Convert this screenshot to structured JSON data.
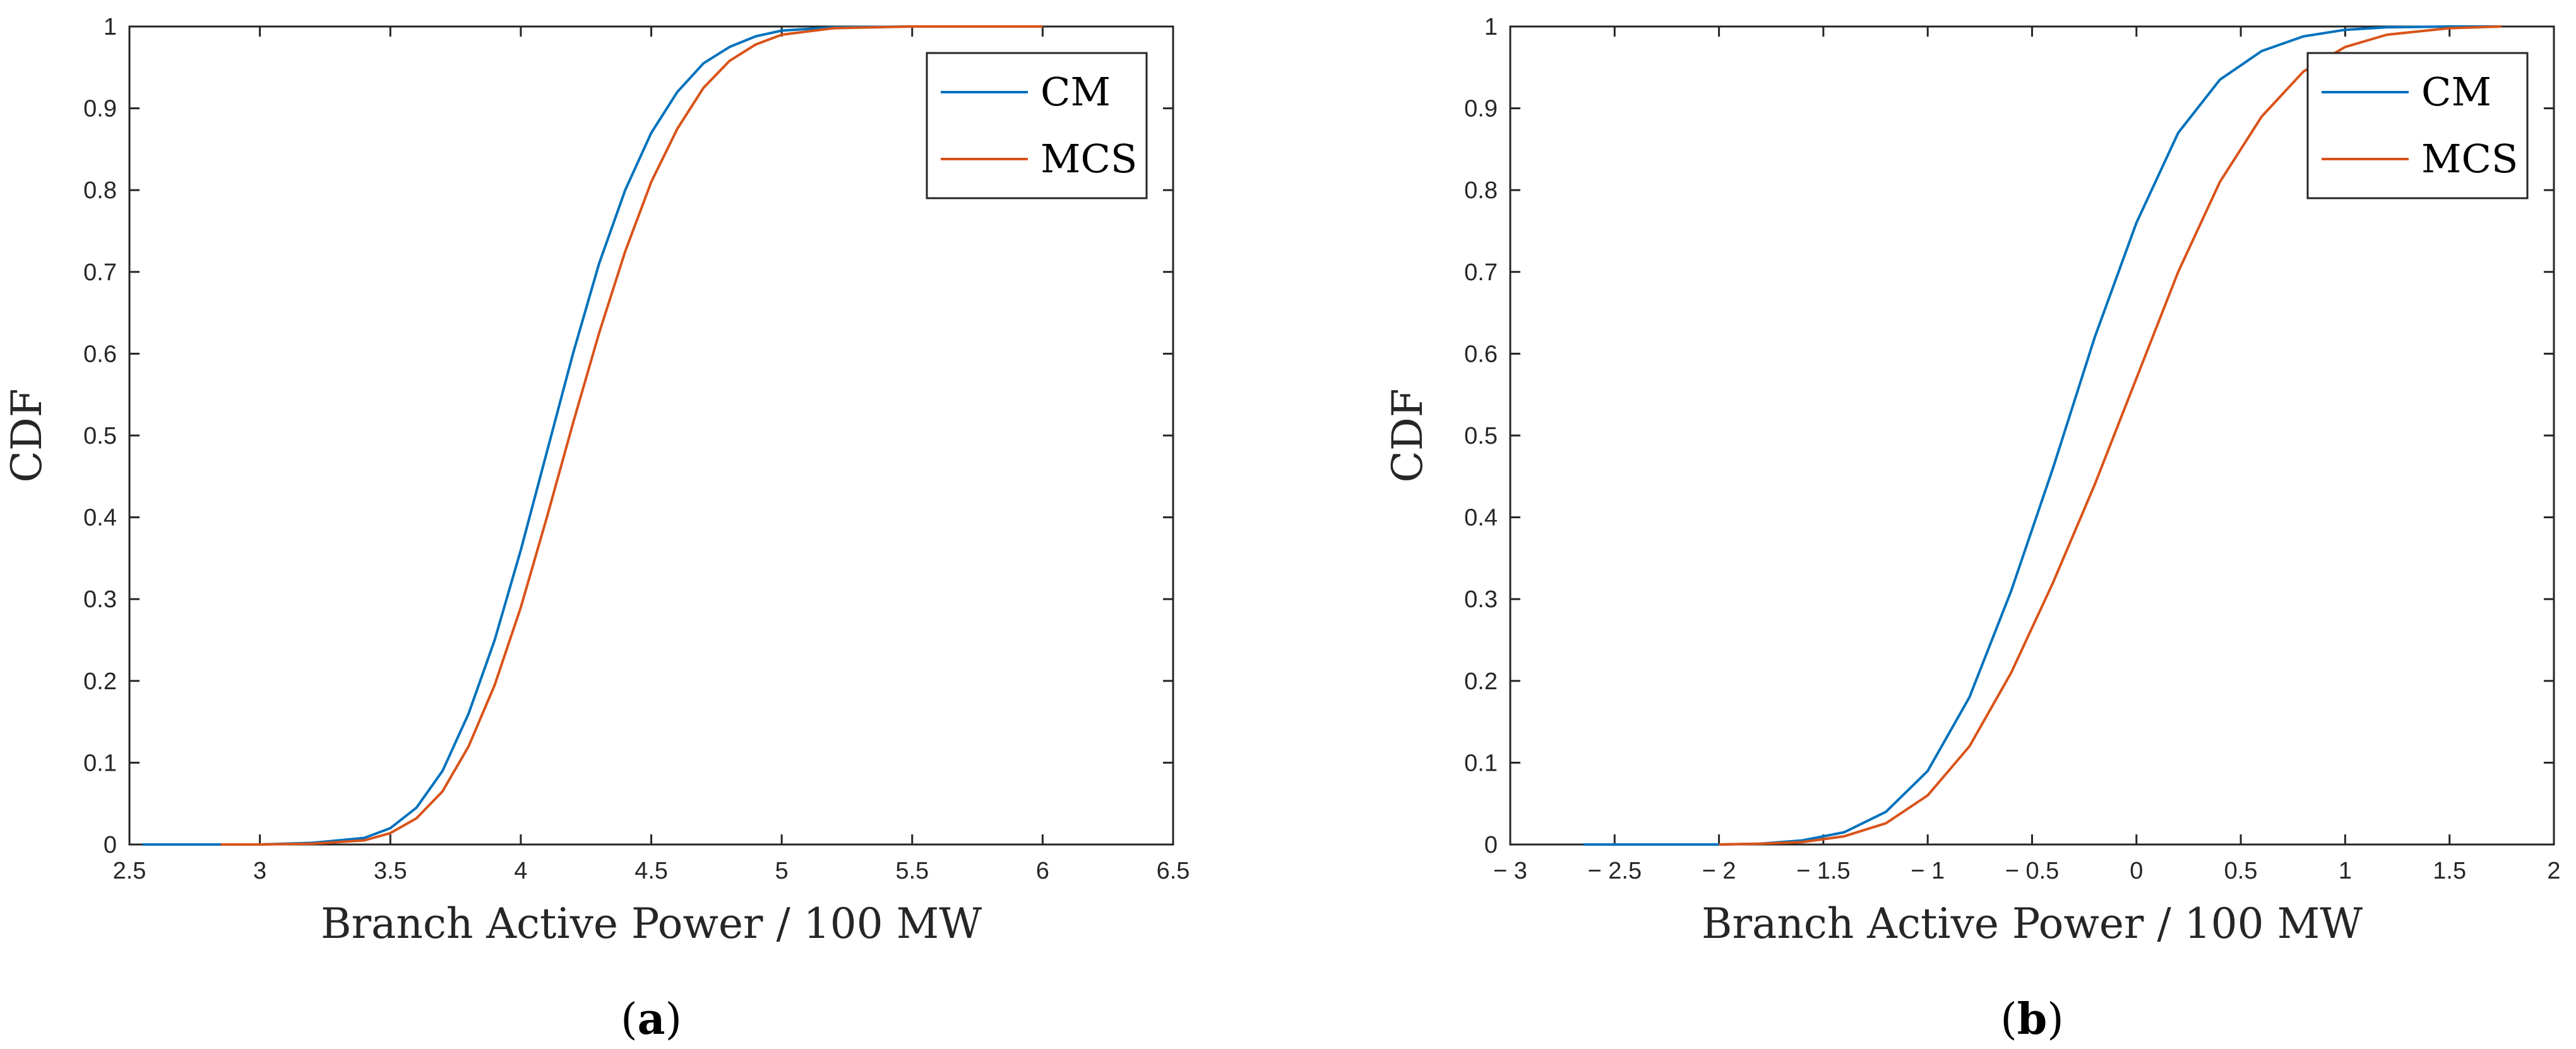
{
  "chart_data": [
    {
      "type": "line",
      "panel_label": "a",
      "xlabel": "Branch Active Power / 100 MW",
      "ylabel": "CDF",
      "xlim": [
        2.5,
        6.5
      ],
      "ylim": [
        0,
        1
      ],
      "xticks": [
        2.5,
        3,
        3.5,
        4,
        4.5,
        5,
        5.5,
        6,
        6.5
      ],
      "xtick_labels": [
        "2.5",
        "3",
        "3.5",
        "4",
        "4.5",
        "5",
        "5.5",
        "6",
        "6.5"
      ],
      "yticks": [
        0,
        0.1,
        0.2,
        0.3,
        0.4,
        0.5,
        0.6,
        0.7,
        0.8,
        0.9,
        1
      ],
      "ytick_labels": [
        "0",
        "0.1",
        "0.2",
        "0.3",
        "0.4",
        "0.5",
        "0.6",
        "0.7",
        "0.8",
        "0.9",
        "1"
      ],
      "grid": false,
      "legend_position": "top-right",
      "series": [
        {
          "name": "CM",
          "color": "#0072BD",
          "x": [
            2.55,
            3.0,
            3.2,
            3.4,
            3.5,
            3.6,
            3.7,
            3.8,
            3.9,
            4.0,
            4.1,
            4.2,
            4.3,
            4.4,
            4.5,
            4.6,
            4.7,
            4.8,
            4.9,
            5.0,
            5.2,
            5.5,
            6.0
          ],
          "y": [
            0.0,
            0.0,
            0.002,
            0.008,
            0.02,
            0.045,
            0.09,
            0.16,
            0.25,
            0.36,
            0.48,
            0.6,
            0.71,
            0.8,
            0.87,
            0.92,
            0.955,
            0.975,
            0.988,
            0.995,
            0.999,
            1.0,
            1.0
          ]
        },
        {
          "name": "MCS",
          "color": "#D95319",
          "x": [
            2.85,
            3.0,
            3.2,
            3.4,
            3.5,
            3.6,
            3.7,
            3.8,
            3.9,
            4.0,
            4.1,
            4.2,
            4.3,
            4.4,
            4.5,
            4.6,
            4.7,
            4.8,
            4.9,
            5.0,
            5.2,
            5.5,
            6.0
          ],
          "y": [
            0.0,
            0.0,
            0.001,
            0.005,
            0.014,
            0.032,
            0.065,
            0.12,
            0.195,
            0.29,
            0.4,
            0.515,
            0.625,
            0.725,
            0.81,
            0.875,
            0.925,
            0.958,
            0.978,
            0.99,
            0.998,
            1.0,
            1.0
          ]
        }
      ]
    },
    {
      "type": "line",
      "panel_label": "b",
      "xlabel": "Branch Active Power / 100 MW",
      "ylabel": "CDF",
      "xlim": [
        -3,
        2
      ],
      "ylim": [
        0,
        1
      ],
      "xticks": [
        -3,
        -2.5,
        -2,
        -1.5,
        -1,
        -0.5,
        0,
        0.5,
        1,
        1.5,
        2
      ],
      "xtick_labels": [
        "− 3",
        "− 2.5",
        "− 2",
        "− 1.5",
        "− 1",
        "− 0.5",
        "0",
        "0.5",
        "1",
        "1.5",
        "2"
      ],
      "yticks": [
        0,
        0.1,
        0.2,
        0.3,
        0.4,
        0.5,
        0.6,
        0.7,
        0.8,
        0.9,
        1
      ],
      "ytick_labels": [
        "0",
        "0.1",
        "0.2",
        "0.3",
        "0.4",
        "0.5",
        "0.6",
        "0.7",
        "0.8",
        "0.9",
        "1"
      ],
      "grid": false,
      "legend_position": "top-right",
      "series": [
        {
          "name": "CM",
          "color": "#0072BD",
          "x": [
            -2.65,
            -2.0,
            -1.8,
            -1.6,
            -1.4,
            -1.2,
            -1.0,
            -0.8,
            -0.6,
            -0.4,
            -0.2,
            0.0,
            0.2,
            0.4,
            0.6,
            0.8,
            1.0,
            1.2,
            1.5,
            1.75
          ],
          "y": [
            0.0,
            0.0,
            0.001,
            0.005,
            0.015,
            0.04,
            0.09,
            0.18,
            0.31,
            0.46,
            0.62,
            0.76,
            0.87,
            0.935,
            0.97,
            0.988,
            0.996,
            0.999,
            1.0,
            1.0
          ]
        },
        {
          "name": "MCS",
          "color": "#D95319",
          "x": [
            -2.0,
            -1.8,
            -1.6,
            -1.4,
            -1.2,
            -1.0,
            -0.8,
            -0.6,
            -0.4,
            -0.2,
            0.0,
            0.2,
            0.4,
            0.6,
            0.8,
            1.0,
            1.2,
            1.5,
            1.75
          ],
          "y": [
            0.0,
            0.001,
            0.003,
            0.01,
            0.026,
            0.06,
            0.12,
            0.21,
            0.32,
            0.44,
            0.57,
            0.7,
            0.81,
            0.89,
            0.945,
            0.975,
            0.99,
            0.998,
            1.0
          ]
        }
      ]
    }
  ]
}
